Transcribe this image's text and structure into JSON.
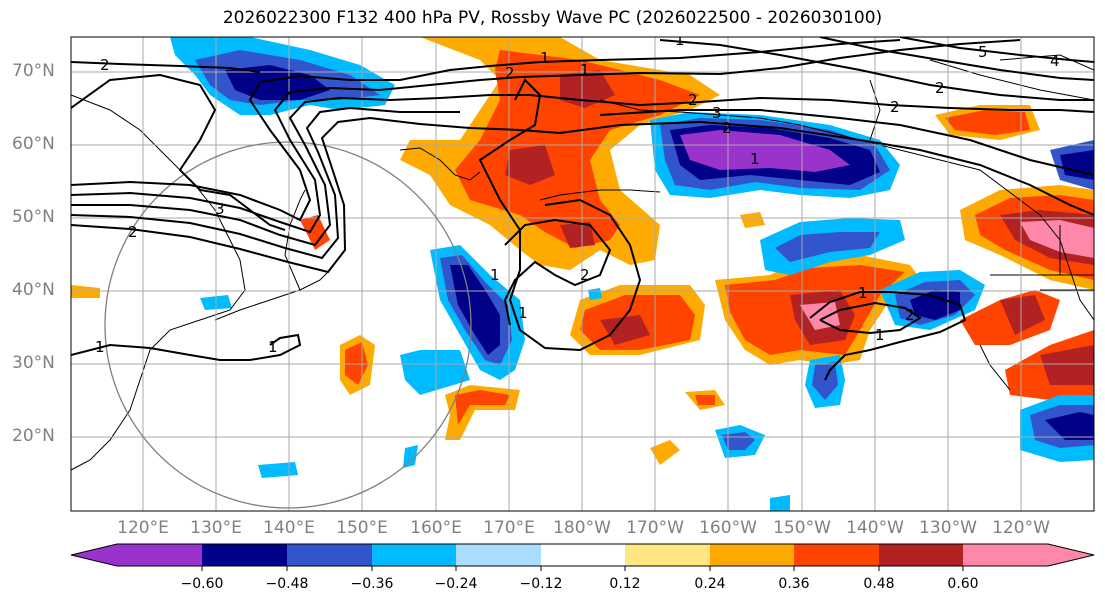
{
  "title": "2026022300 F132 400 hPa PV, Rossby Wave PC (2026022500 - 2026030100)",
  "lat_labels": [
    "70°N",
    "60°N",
    "50°N",
    "40°N",
    "30°N",
    "20°N"
  ],
  "lon_labels": [
    "120°E",
    "130°E",
    "140°E",
    "150°E",
    "160°E",
    "170°E",
    "180°W",
    "170°W",
    "160°W",
    "150°W",
    "140°W",
    "130°W",
    "120°W"
  ],
  "colorbar": {
    "ticks": [
      "−0.60",
      "−0.48",
      "−0.36",
      "−0.24",
      "−0.12",
      "0.12",
      "0.24",
      "0.36",
      "0.48",
      "0.60"
    ],
    "colors": [
      "#9933cc",
      "#000088",
      "#3355cc",
      "#00bbff",
      "#aaddff",
      "#ffffff",
      "#ffe680",
      "#ffaa00",
      "#ff4400",
      "#b22222",
      "#ff88aa"
    ]
  },
  "contour_labels": [
    "2",
    "1",
    "1",
    "2",
    "3",
    "5",
    "4",
    "2",
    "2",
    "3",
    "2",
    "1",
    "2",
    "1",
    "1",
    "1",
    "1",
    "1",
    "2",
    "1",
    "1",
    "2",
    "2"
  ]
}
